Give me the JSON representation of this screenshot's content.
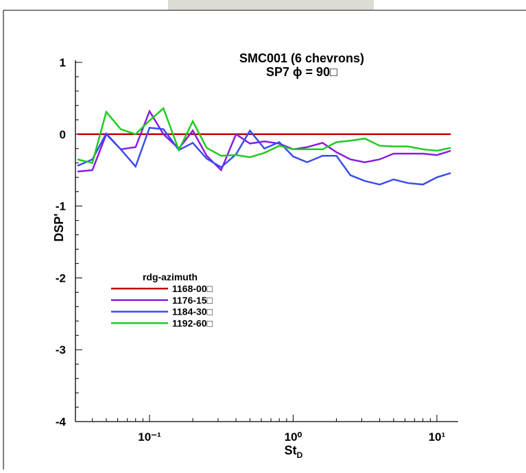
{
  "chart_data": {
    "type": "line",
    "title": "SMC001  (6 chevrons)",
    "subtitle": "SP7   ϕ = 90□",
    "xlabel": {
      "text": "St",
      "subscript": "D"
    },
    "ylabel": "DSP'",
    "x": [
      0.0315,
      0.04,
      0.05,
      0.063,
      0.08,
      0.1,
      0.125,
      0.16,
      0.2,
      0.25,
      0.315,
      0.4,
      0.5,
      0.63,
      0.8,
      1.0,
      1.25,
      1.6,
      2,
      2.5,
      3.15,
      4,
      5,
      6.3,
      8,
      10,
      12.5
    ],
    "xscale": "log",
    "xlim": [
      0.0305,
      14.06
    ],
    "xticks": [
      {
        "value": 0.1,
        "label": "10⁻¹"
      },
      {
        "value": 1,
        "label": "10⁰"
      },
      {
        "value": 10,
        "label": "10¹"
      }
    ],
    "ylim": [
      -4,
      1
    ],
    "yticks": [
      -4,
      -3,
      -2,
      -1,
      0,
      1
    ],
    "minor_ticks": true,
    "grid": false,
    "legend_title": "rdg-azimuth",
    "legend_position": "lower-left",
    "series": [
      {
        "name": "1168-00□",
        "color": "#c00000",
        "values": [
          0,
          0,
          0,
          0,
          0,
          0,
          0,
          0,
          0,
          0,
          0,
          0,
          0,
          0,
          0,
          0,
          0,
          0,
          0,
          0,
          0,
          0,
          0,
          0,
          0,
          0,
          0
        ]
      },
      {
        "name": "1176-15□",
        "color": "#8a1be0",
        "values": [
          -0.52,
          -0.5,
          0,
          -0.21,
          -0.18,
          0.32,
          0,
          -0.2,
          0.05,
          -0.3,
          -0.5,
          0,
          -0.13,
          -0.1,
          -0.13,
          -0.21,
          -0.18,
          -0.12,
          -0.25,
          -0.35,
          -0.39,
          -0.35,
          -0.27,
          -0.27,
          -0.27,
          -0.29,
          -0.23
        ]
      },
      {
        "name": "1184-30□",
        "color": "#3a4cf0",
        "values": [
          -0.44,
          -0.35,
          0.01,
          -0.21,
          -0.45,
          0.09,
          0.07,
          -0.22,
          -0.12,
          -0.34,
          -0.46,
          -0.28,
          0.05,
          -0.2,
          -0.11,
          -0.31,
          -0.39,
          -0.3,
          -0.3,
          -0.57,
          -0.65,
          -0.7,
          -0.63,
          -0.68,
          -0.7,
          -0.6,
          -0.54
        ]
      },
      {
        "name": "1192-60□",
        "color": "#1ecb1e",
        "values": [
          -0.35,
          -0.4,
          0.31,
          0.07,
          0,
          0.19,
          0.36,
          -0.22,
          0.18,
          -0.19,
          -0.3,
          -0.29,
          -0.32,
          -0.26,
          -0.16,
          -0.21,
          -0.21,
          -0.21,
          -0.11,
          -0.09,
          -0.06,
          -0.16,
          -0.17,
          -0.17,
          -0.21,
          -0.23,
          -0.19
        ]
      }
    ]
  }
}
